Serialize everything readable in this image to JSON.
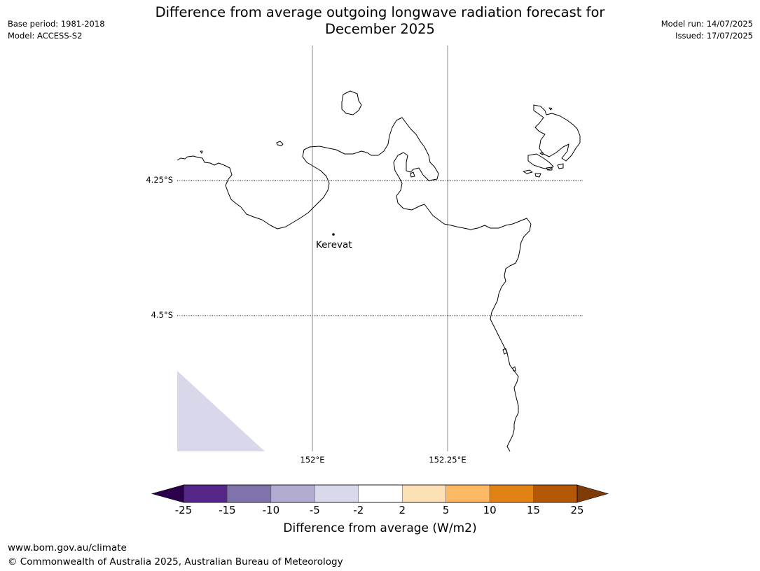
{
  "header": {
    "title_line1": "Difference from average outgoing longwave radiation forecast for",
    "title_line2": "December 2025",
    "base_period": "Base period: 1981-2018",
    "model": "Model: ACCESS-S2",
    "model_run": "Model run: 14/07/2025",
    "issued": "Issued: 17/07/2025"
  },
  "map": {
    "lat_labels": [
      "4.25°S",
      "4.5°S"
    ],
    "lon_labels": [
      "152°E",
      "152.25°E"
    ],
    "place_name": "Kerevat",
    "anomaly_fill_color": "#d8d8ea",
    "coastline_color": "#000000"
  },
  "colorbar": {
    "title": "Difference from average (W/m2)",
    "tick_labels": [
      "-25",
      "-15",
      "-10",
      "-5",
      "-2",
      "2",
      "5",
      "10",
      "15",
      "25"
    ],
    "under_color": "#2d004b",
    "over_color": "#7f3b08",
    "colors": [
      "#542788",
      "#8073ac",
      "#b2abd2",
      "#d8daeb",
      "#ffffff",
      "#fee0b6",
      "#fdb863",
      "#e08214",
      "#b35806"
    ]
  },
  "footer": {
    "url": "www.bom.gov.au/climate",
    "copyright": "© Commonwealth of Australia 2025, Australian Bureau of Meteorology"
  }
}
